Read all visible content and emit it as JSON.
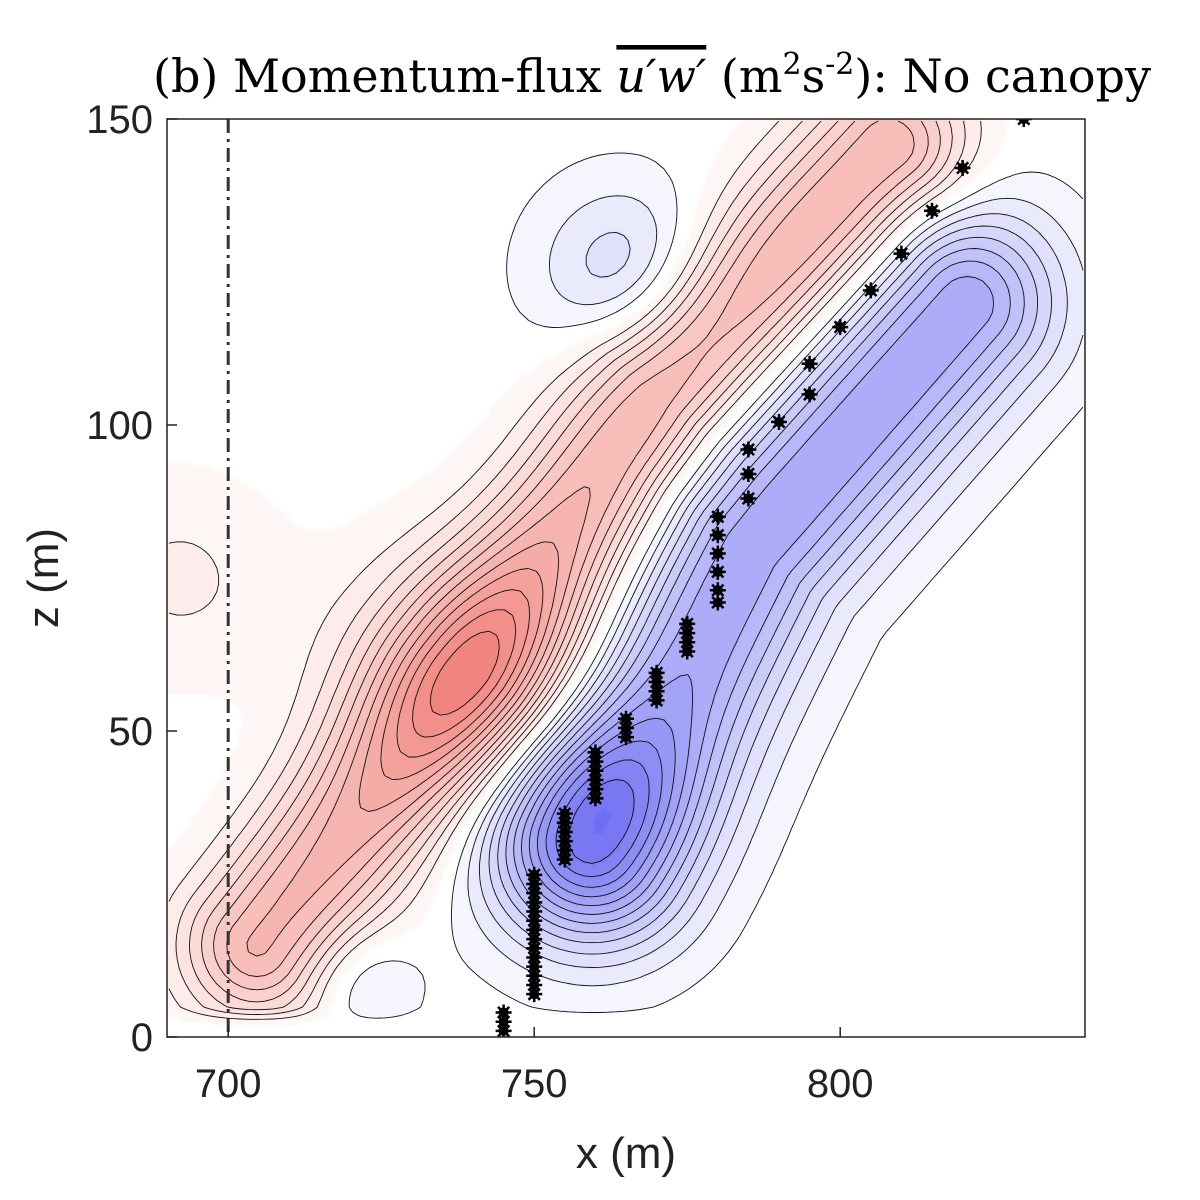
{
  "chart_data": {
    "type": "contour",
    "title_prefix": "(b) Momentum-flux ",
    "title_variable": "u′w′",
    "title_units_m": "(m",
    "title_units_s": "s",
    "title_exp_m": "2",
    "title_exp_s": "-2",
    "title_units_close": "):",
    "title_suffix": " No canopy",
    "xlabel": "x (m)",
    "ylabel": "z (m)",
    "xlim": [
      690,
      840
    ],
    "ylim": [
      0,
      150
    ],
    "xticks": [
      700,
      750,
      800
    ],
    "yticks": [
      0,
      50,
      100,
      150
    ],
    "reference_line_x": 700,
    "field_features": {
      "positive_band_axis": [
        [
          705,
          15
        ],
        [
          740,
          60
        ],
        [
          770,
          105
        ],
        [
          808,
          145
        ]
      ],
      "negative_band_axis": [
        [
          760,
          30
        ],
        [
          785,
          80
        ],
        [
          820,
          120
        ]
      ],
      "positive_peak": [
        740,
        58
      ],
      "negative_peak": [
        757,
        38
      ],
      "weak_positive_blob": [
        692,
        75
      ]
    },
    "marker_points": [
      [
        745,
        1
      ],
      [
        745,
        2.5
      ],
      [
        745,
        4
      ],
      [
        750,
        7
      ],
      [
        750,
        8.5
      ],
      [
        750,
        10
      ],
      [
        750,
        11.5
      ],
      [
        750,
        13
      ],
      [
        750,
        14.5
      ],
      [
        750,
        16
      ],
      [
        750,
        17.5
      ],
      [
        750,
        19
      ],
      [
        750,
        20.5
      ],
      [
        750,
        22
      ],
      [
        750,
        23.5
      ],
      [
        750,
        25
      ],
      [
        750,
        26.5
      ],
      [
        755,
        29
      ],
      [
        755,
        30.5
      ],
      [
        755,
        32
      ],
      [
        755,
        33.5
      ],
      [
        755,
        35
      ],
      [
        755,
        36.5
      ],
      [
        760,
        39
      ],
      [
        760,
        40.5
      ],
      [
        760,
        42
      ],
      [
        760,
        43.5
      ],
      [
        760,
        45
      ],
      [
        760,
        46.5
      ],
      [
        765,
        49
      ],
      [
        765,
        50.5
      ],
      [
        765,
        52
      ],
      [
        770,
        55
      ],
      [
        770,
        56.5
      ],
      [
        770,
        58
      ],
      [
        770,
        59.5
      ],
      [
        775,
        63
      ],
      [
        775,
        64.5
      ],
      [
        775,
        66
      ],
      [
        775,
        67.5
      ],
      [
        780,
        71
      ],
      [
        780,
        73
      ],
      [
        780,
        76
      ],
      [
        780,
        79
      ],
      [
        780,
        82
      ],
      [
        780,
        85
      ],
      [
        785,
        88
      ],
      [
        785,
        92
      ],
      [
        785,
        96
      ],
      [
        790,
        100.5
      ],
      [
        795,
        105
      ],
      [
        795,
        110
      ],
      [
        800,
        116
      ],
      [
        805,
        122
      ],
      [
        810,
        128
      ],
      [
        815,
        135
      ],
      [
        820,
        142
      ],
      [
        830,
        150
      ]
    ],
    "colors": {
      "positive": "#f07c74",
      "negative": "#6e6ef2",
      "neutral": "#ffffff",
      "contour": "#111111",
      "marker": "#000000",
      "reference_line": "#333333"
    }
  }
}
